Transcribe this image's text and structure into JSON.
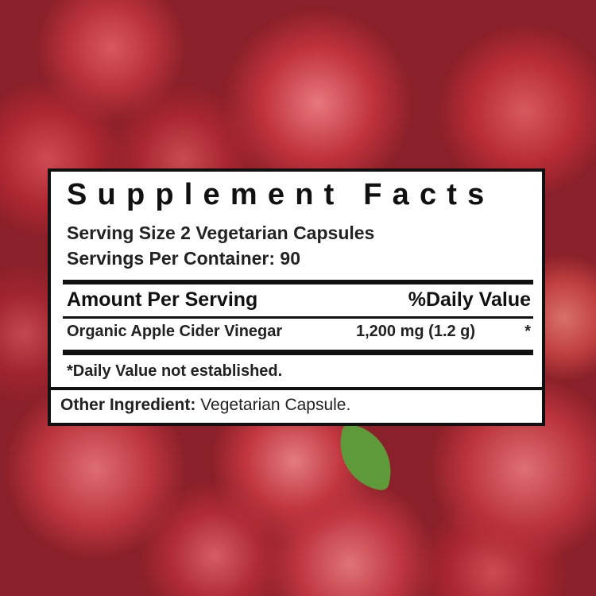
{
  "title": "Supplement Facts",
  "serving_size": "Serving Size 2 Vegetarian Capsules",
  "servings_per_container": "Servings Per Container: 90",
  "header": {
    "amount": "Amount Per Serving",
    "daily_value": "%Daily Value"
  },
  "ingredients": [
    {
      "name": "Organic Apple Cider Vinegar",
      "amount": "1,200 mg (1.2 g)",
      "dv": "*"
    }
  ],
  "footnote": "*Daily Value not established.",
  "other_ingredient": {
    "label": "Other Ingredient:",
    "value": "Vegetarian Capsule."
  },
  "colors": {
    "background": "#b8313a",
    "label_border": "#111111",
    "label_fill": "#ffffff"
  }
}
